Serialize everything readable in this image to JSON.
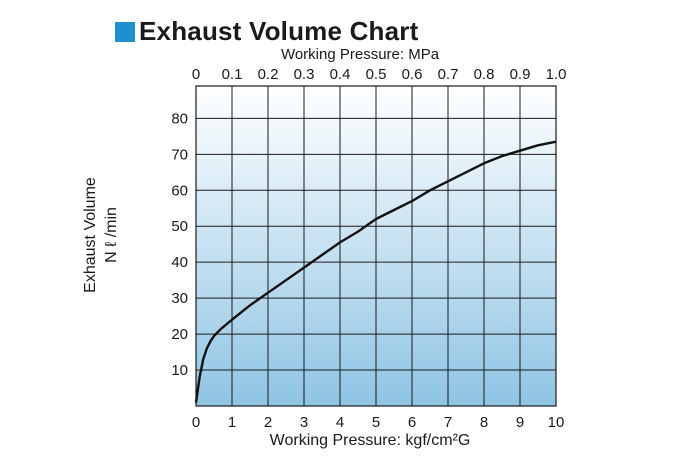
{
  "title": "Exhaust Volume Chart",
  "colors": {
    "title_square": "#1f8fd0",
    "grid_top": "#ffffff",
    "grid_bottom": "#8fc4e4",
    "line": "#111111"
  },
  "chart_data": {
    "type": "line",
    "title": "Exhaust Volume Chart",
    "xlabel": "Working Pressure: kgf/cm²G",
    "x2label": "Working Pressure: MPa",
    "ylabel": [
      "Exhaust Volume",
      "N ℓ /min"
    ],
    "xlim": [
      0,
      10
    ],
    "ylim": [
      0,
      80
    ],
    "x_ticks": [
      "0",
      "1",
      "2",
      "3",
      "4",
      "5",
      "6",
      "7",
      "8",
      "9",
      "10"
    ],
    "x2_ticks": [
      "0",
      "0.1",
      "0.2",
      "0.3",
      "0.4",
      "0.5",
      "0.6",
      "0.7",
      "0.8",
      "0.9",
      "1.0"
    ],
    "y_ticks": [
      "10",
      "20",
      "30",
      "40",
      "50",
      "60",
      "70",
      "80"
    ],
    "grid": true,
    "series": [
      {
        "x": [
          0,
          0.1,
          0.2,
          0.3,
          0.4,
          0.5,
          0.7,
          1,
          1.5,
          2,
          2.5,
          3,
          3.5,
          4,
          4.5,
          5,
          5.5,
          6,
          6.5,
          7,
          7.5,
          8,
          8.5,
          9,
          9.5,
          10
        ],
        "values": [
          1,
          8,
          13,
          16,
          18,
          19.5,
          21.5,
          24,
          28,
          31.5,
          35,
          38.5,
          42,
          45.5,
          48.5,
          52,
          54.5,
          57,
          60,
          62.5,
          65,
          67.5,
          69.5,
          71,
          72.5,
          73.5
        ]
      }
    ]
  }
}
